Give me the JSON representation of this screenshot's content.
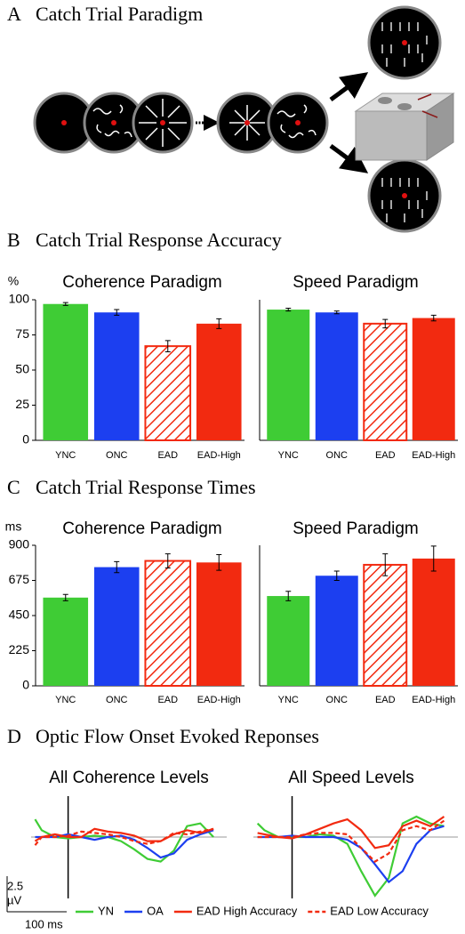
{
  "panels": [
    {
      "letter": "A",
      "title": "Catch Trial Paradigm"
    },
    {
      "letter": "B",
      "title": "Catch Trial Response Accuracy"
    },
    {
      "letter": "C",
      "title": "Catch Trial Response Times"
    },
    {
      "letter": "D",
      "title": "Optic Flow Onset Evoked Reponses"
    }
  ],
  "scale_bar": {
    "amplitude": "2.5",
    "amplitude_unit": "µV",
    "time": "100 ms"
  },
  "chart_data": [
    {
      "type": "bar",
      "title": "Coherence Paradigm",
      "y_label": "%",
      "categories": [
        "YNC",
        "ONC",
        "EAD",
        "EAD-High"
      ],
      "values": [
        97,
        91,
        67,
        83
      ],
      "errors": [
        1,
        2,
        4,
        3.5
      ],
      "colors": [
        "#3fcc35",
        "#1c3ff0",
        "#f22a10",
        "#f22a10"
      ],
      "patterns": [
        "solid",
        "solid",
        "hatched",
        "solid"
      ],
      "ylim": [
        0,
        100
      ],
      "yticks": [
        0,
        25,
        50,
        75,
        100
      ]
    },
    {
      "type": "bar",
      "title": "Speed Paradigm",
      "categories": [
        "YNC",
        "ONC",
        "EAD",
        "EAD-High"
      ],
      "values": [
        93,
        91,
        83,
        87
      ],
      "errors": [
        1,
        1,
        3,
        2
      ],
      "colors": [
        "#3fcc35",
        "#1c3ff0",
        "#f22a10",
        "#f22a10"
      ],
      "patterns": [
        "solid",
        "solid",
        "hatched",
        "solid"
      ],
      "ylim": [
        0,
        100
      ]
    },
    {
      "type": "bar",
      "title": "Coherence Paradigm",
      "y_label": "ms",
      "categories": [
        "YNC",
        "ONC",
        "EAD",
        "EAD-High"
      ],
      "values": [
        565,
        760,
        800,
        790
      ],
      "errors": [
        20,
        35,
        45,
        50
      ],
      "colors": [
        "#3fcc35",
        "#1c3ff0",
        "#f22a10",
        "#f22a10"
      ],
      "patterns": [
        "solid",
        "solid",
        "hatched",
        "solid"
      ],
      "ylim": [
        0,
        900
      ],
      "yticks": [
        0,
        225,
        450,
        675,
        900
      ]
    },
    {
      "type": "bar",
      "title": "Speed Paradigm",
      "categories": [
        "YNC",
        "ONC",
        "EAD",
        "EAD-High"
      ],
      "values": [
        575,
        705,
        775,
        815
      ],
      "errors": [
        30,
        30,
        70,
        80
      ],
      "colors": [
        "#3fcc35",
        "#1c3ff0",
        "#f22a10",
        "#f22a10"
      ],
      "patterns": [
        "solid",
        "solid",
        "hatched",
        "solid"
      ],
      "ylim": [
        0,
        900
      ]
    },
    {
      "type": "line",
      "title": "All Coherence Levels",
      "x": [
        -125,
        -100,
        -50,
        0,
        50,
        100,
        150,
        200,
        250,
        300,
        350,
        400,
        450,
        500,
        550
      ],
      "xlim": [
        -140,
        600
      ],
      "ylim": [
        -4.5,
        3
      ],
      "series": [
        {
          "name": "YN",
          "color": "#3fcc35",
          "dash": false,
          "values": [
            1.3,
            0.5,
            0,
            -0.1,
            0,
            0.1,
            0,
            -0.3,
            -0.9,
            -1.6,
            -1.8,
            -1,
            0.8,
            1.0,
            0
          ]
        },
        {
          "name": "OA",
          "color": "#1c3ff0",
          "dash": false,
          "values": [
            0,
            0,
            0,
            0.2,
            0,
            -0.2,
            0,
            0.1,
            -0.2,
            -0.8,
            -1.5,
            -1.2,
            -0.2,
            0.2,
            0.5
          ]
        },
        {
          "name": "EAD High Accuracy",
          "color": "#f22a10",
          "dash": false,
          "values": [
            -0.3,
            0,
            0.2,
            0,
            0,
            0.6,
            0.4,
            0.3,
            0.1,
            -0.3,
            -0.3,
            0.2,
            0.5,
            0.3,
            0.6
          ]
        },
        {
          "name": "EAD Low Accuracy",
          "color": "#f22a10",
          "dash": true,
          "values": [
            -0.6,
            0,
            0,
            0.1,
            0.4,
            0.3,
            0.2,
            0,
            -0.3,
            -0.5,
            -0.3,
            0.3,
            0.2,
            0.4,
            0.6
          ]
        }
      ]
    },
    {
      "type": "line",
      "title": "All Speed Levels",
      "x": [
        -125,
        -100,
        -50,
        0,
        50,
        100,
        150,
        200,
        250,
        300,
        350,
        400,
        450,
        500,
        550
      ],
      "xlim": [
        -140,
        600
      ],
      "ylim": [
        -4.5,
        3
      ],
      "series": [
        {
          "color": "#3fcc35",
          "dash": false,
          "values": [
            1,
            0.5,
            0,
            0,
            0,
            0.2,
            0.1,
            -0.5,
            -2.5,
            -4.3,
            -3,
            1.0,
            1.5,
            1.0,
            0.8
          ]
        },
        {
          "color": "#1c3ff0",
          "dash": false,
          "values": [
            0,
            0,
            0,
            0.1,
            0,
            0,
            0,
            -0.2,
            -0.8,
            -2,
            -3.3,
            -2.5,
            -0.5,
            0.5,
            0.8
          ]
        },
        {
          "color": "#f22a10",
          "dash": false,
          "values": [
            0.3,
            0.2,
            0,
            -0.1,
            0.2,
            0.6,
            1,
            1.3,
            0.5,
            -0.8,
            -0.6,
            0.8,
            1.2,
            0.8,
            1.5
          ]
        },
        {
          "color": "#f22a10",
          "dash": true,
          "values": [
            0,
            0,
            0,
            0,
            0.2,
            0.3,
            0.3,
            0.2,
            -0.8,
            -1.8,
            -1.2,
            0.5,
            0.8,
            0.5,
            1.2
          ]
        }
      ]
    }
  ]
}
